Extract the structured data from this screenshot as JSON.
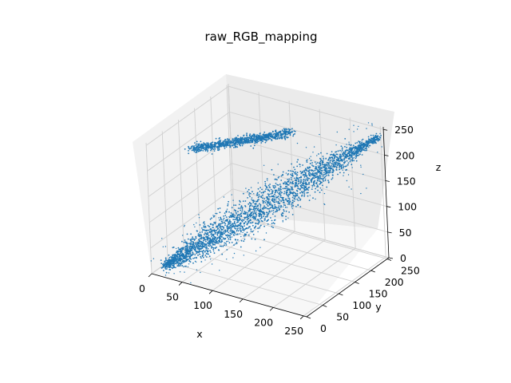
{
  "chart_data": {
    "type": "scatter",
    "projection": "3d",
    "title": "raw_RGB_mapping",
    "xlabel": "x",
    "ylabel": "y",
    "zlabel": "z",
    "xlim": [
      0,
      255
    ],
    "ylim": [
      0,
      255
    ],
    "zlim": [
      0,
      255
    ],
    "xticks": [
      "0",
      "50",
      "100",
      "150",
      "200",
      "250"
    ],
    "yticks": [
      "0",
      "50",
      "100",
      "150",
      "200",
      "250"
    ],
    "zticks": [
      "0",
      "50",
      "100",
      "150",
      "200",
      "250"
    ],
    "grid": true,
    "marker_color": "#1f77b4",
    "clusters": [
      {
        "x_range": [
          15,
          250
        ],
        "y_range": [
          5,
          250
        ],
        "z_range": [
          8,
          250
        ]
      },
      {
        "x_range": [
          5,
          120
        ],
        "y_range": [
          120,
          230
        ],
        "z_range": [
          185,
          220
        ]
      }
    ]
  }
}
